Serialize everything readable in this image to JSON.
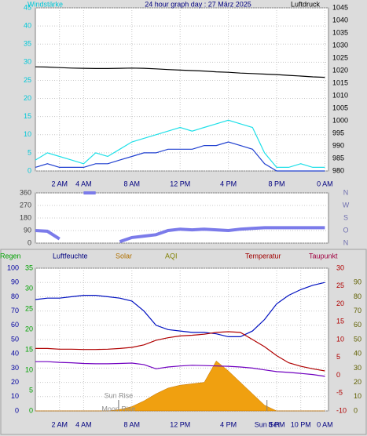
{
  "chart_data": [
    {
      "type": "line",
      "title": "24 hour graph day : 27 März 2025",
      "y_label": "Windstärke",
      "y2_label": "Luftdruck",
      "y_color": "#00c8d8",
      "y2_color": "#000000",
      "grid": true,
      "x": [
        0,
        1,
        2,
        3,
        4,
        5,
        6,
        7,
        8,
        9,
        10,
        11,
        12,
        13,
        14,
        15,
        16,
        17,
        18,
        19,
        20,
        21,
        22,
        23,
        24
      ],
      "xlim": [
        0,
        24.3
      ],
      "xticks": [
        {
          "value": 2,
          "label": "2 AM"
        },
        {
          "value": 4,
          "label": "4 AM"
        },
        {
          "value": 8,
          "label": "8 AM"
        },
        {
          "value": 12,
          "label": "12 PM"
        },
        {
          "value": 16,
          "label": "4 PM"
        },
        {
          "value": 20,
          "label": "8 PM"
        },
        {
          "value": 24,
          "label": "0 AM"
        }
      ],
      "ylim": [
        0,
        45
      ],
      "yticks": [
        0,
        5,
        10,
        15,
        20,
        25,
        30,
        35,
        40,
        45
      ],
      "y2lim": [
        980,
        1045
      ],
      "y2ticks": [
        980,
        985,
        990,
        995,
        1000,
        1005,
        1010,
        1015,
        1020,
        1025,
        1030,
        1035,
        1040,
        1045
      ],
      "series": [
        {
          "color": "#20e0e8",
          "axis": "y",
          "values": [
            3,
            5,
            4,
            3,
            2,
            5,
            4,
            6,
            8,
            9,
            10,
            11,
            12,
            11,
            12,
            13,
            14,
            13,
            12,
            5,
            1,
            1,
            2,
            1,
            1
          ]
        },
        {
          "color": "#2040d0",
          "axis": "y",
          "values": [
            1,
            2,
            1,
            1,
            1,
            2,
            2,
            3,
            4,
            5,
            5,
            6,
            6,
            6,
            7,
            7,
            8,
            7,
            6,
            2,
            0,
            0,
            0,
            0,
            0
          ]
        },
        {
          "color": "#000000",
          "axis": "y2",
          "values": [
            1021.5,
            1021.4,
            1021.2,
            1021,
            1020.9,
            1020.8,
            1020.8,
            1020.9,
            1021,
            1020.9,
            1020.7,
            1020.4,
            1020.2,
            1020,
            1019.8,
            1019.5,
            1019.3,
            1019,
            1018.8,
            1018.6,
            1018.4,
            1018.1,
            1017.8,
            1017.5,
            1017.3
          ]
        }
      ]
    },
    {
      "type": "line",
      "y_color": "#404040",
      "y2_color": "#7070b0",
      "grid": true,
      "x": [
        0,
        1,
        2,
        3,
        4,
        5,
        6,
        7,
        8,
        9,
        10,
        11,
        12,
        13,
        14,
        15,
        16,
        17,
        18,
        19,
        20,
        21,
        22,
        23,
        24
      ],
      "xlim": [
        0,
        24.3
      ],
      "ylim": [
        0,
        360
      ],
      "yticks": [
        0,
        90,
        180,
        270,
        360
      ],
      "y2lim": [
        0,
        360
      ],
      "y2ticks": [
        {
          "value": 0,
          "label": "N"
        },
        {
          "value": 90,
          "label": "O"
        },
        {
          "value": 180,
          "label": "S"
        },
        {
          "value": 270,
          "label": "W"
        },
        {
          "value": 360,
          "label": "N"
        }
      ],
      "series": [
        {
          "color": "#7b7bea",
          "axis": "y",
          "values": [
            90,
            85,
            30,
            null,
            360,
            360,
            null,
            10,
            40,
            50,
            60,
            90,
            100,
            95,
            100,
            95,
            90,
            100,
            105,
            110,
            110,
            110,
            110,
            110,
            110
          ]
        }
      ]
    },
    {
      "type": "line",
      "header_labels": [
        {
          "text": "Regen",
          "color": "#00a000"
        },
        {
          "text": "Luftfeuchte",
          "color": "#000080"
        },
        {
          "text": "Solar",
          "color": "#b07000"
        },
        {
          "text": "AQI",
          "color": "#808000"
        },
        {
          "text": "Temperatur",
          "color": "#a00000"
        },
        {
          "text": "Taupunkt",
          "color": "#a00040"
        }
      ],
      "y_color": "#0000a0",
      "y3_color": "#00a000",
      "y2_color": "#b00000",
      "y4_color": "#606000",
      "grid": true,
      "x": [
        0,
        1,
        2,
        3,
        4,
        5,
        6,
        7,
        8,
        9,
        10,
        11,
        12,
        13,
        14,
        15,
        16,
        17,
        18,
        19,
        20,
        21,
        22,
        23,
        24
      ],
      "xlim": [
        0,
        24.3
      ],
      "xticks": [
        {
          "value": 2,
          "label": "2 AM"
        },
        {
          "value": 4,
          "label": "4 AM"
        },
        {
          "value": 8,
          "label": "8 AM"
        },
        {
          "value": 12,
          "label": "12 PM"
        },
        {
          "value": 16,
          "label": "4 PM"
        },
        {
          "value": 20,
          "label": "8 PM"
        },
        {
          "value": 22,
          "label": "10 PM"
        },
        {
          "value": 24,
          "label": "0 AM"
        }
      ],
      "ylim": [
        0,
        100
      ],
      "yticks": [
        0,
        10,
        20,
        30,
        40,
        50,
        60,
        70,
        80,
        90,
        100
      ],
      "y3lim": [
        0,
        35
      ],
      "y3ticks": [
        0,
        5,
        10,
        15,
        20,
        25,
        30,
        35
      ],
      "y2lim": [
        -10,
        30
      ],
      "y2ticks": [
        -10,
        -5,
        0,
        5,
        10,
        15,
        20,
        25,
        30
      ],
      "y4lim": [
        0,
        100
      ],
      "y4ticks": [
        0,
        10,
        20,
        30,
        40,
        50,
        60,
        70,
        80,
        90
      ],
      "annotations": [
        {
          "text": "Sun Rise",
          "x": 6.9
        },
        {
          "text": "Moon Rise",
          "x": 6.9
        },
        {
          "text": "Sun Set",
          "x": 19.2
        }
      ],
      "series": [
        {
          "color": "#f0a010",
          "axis": "y4",
          "fill": true,
          "values": [
            0,
            0,
            0,
            0,
            0,
            0,
            0,
            1,
            3,
            7,
            12,
            16,
            18,
            19,
            20,
            35,
            28,
            20,
            12,
            4,
            0,
            0,
            0,
            0,
            0
          ]
        },
        {
          "color": "#0010c0",
          "axis": "y",
          "values": [
            78,
            79,
            79,
            80,
            81,
            81,
            80,
            79,
            77,
            70,
            60,
            57,
            56,
            55,
            55,
            54,
            52,
            52,
            56,
            64,
            75,
            81,
            85,
            88,
            90
          ]
        },
        {
          "color": "#b00000",
          "axis": "y2",
          "values": [
            7.5,
            7.5,
            7.3,
            7.3,
            7.2,
            7.2,
            7.3,
            7.5,
            7.8,
            8.5,
            9.8,
            10.5,
            11,
            11.2,
            11.5,
            12,
            12.2,
            12,
            10,
            8,
            5.5,
            3.5,
            2.5,
            1.8,
            1.2
          ]
        },
        {
          "color": "#7000c0",
          "axis": "y2",
          "values": [
            3.8,
            3.8,
            3.6,
            3.5,
            3.3,
            3.2,
            3.2,
            3.3,
            3.4,
            3,
            1.8,
            2.3,
            2.6,
            2.8,
            2.7,
            2.6,
            2.5,
            2.3,
            2,
            1.5,
            1,
            0.8,
            0.5,
            0.2,
            -0.3
          ]
        }
      ]
    }
  ]
}
